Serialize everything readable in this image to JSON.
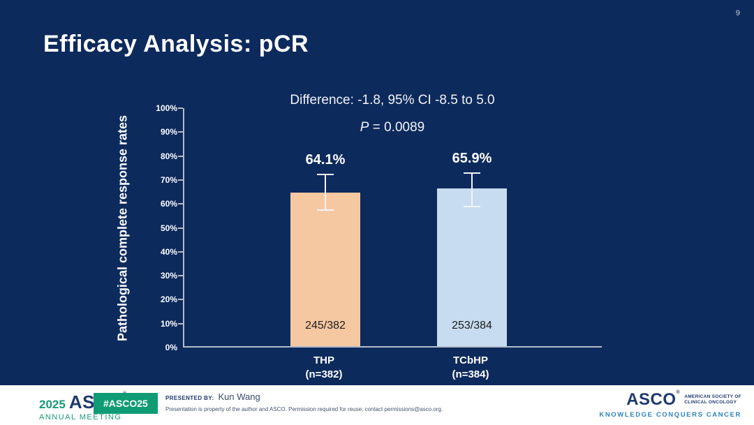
{
  "page_number": "9",
  "slide": {
    "title": "Efficacy Analysis: pCR"
  },
  "chart_data": {
    "type": "bar",
    "title": "",
    "ylabel": "Pathological complete response rates",
    "xlabel": "",
    "ylim": [
      0,
      100
    ],
    "ytick_step": 10,
    "ytick_labels": [
      "0%",
      "10%",
      "20%",
      "30%",
      "40%",
      "50%",
      "60%",
      "70%",
      "80%",
      "90%",
      "100%"
    ],
    "grid": false,
    "legend": "none",
    "categories": [
      "THP (n=382)",
      "TCbHP (n=384)"
    ],
    "bars": [
      {
        "label_line1": "THP",
        "label_line2": "(n=382)",
        "value": 64.1,
        "value_label": "64.1%",
        "count_label": "245/382",
        "color": "#f6c8a2",
        "ci_low": 57.5,
        "ci_high": 72.3
      },
      {
        "label_line1": "TCbHP",
        "label_line2": "(n=384)",
        "value": 65.9,
        "value_label": "65.9%",
        "count_label": "253/384",
        "color": "#c7dcf0",
        "ci_low": 58.8,
        "ci_high": 72.9
      }
    ],
    "annotations": {
      "difference": "Difference: -1.8, 95% CI -8.5 to 5.0",
      "p_italic": "P",
      "p_rest": " = 0.0089"
    }
  },
  "colors": {
    "background": "#0d2a5c",
    "bar_thp": "#f6c8a2",
    "bar_tcbhp": "#c7dcf0",
    "axis": "#b3bcc9",
    "badge_green": "#0f9c74",
    "logo_green": "#169a77",
    "logo_navy": "#1e3a6e",
    "motto_blue": "#2e83bd"
  },
  "footer": {
    "meeting_logo": {
      "year": "2025",
      "org": "ASCO",
      "reg": "®",
      "sub": "ANNUAL MEETING"
    },
    "hashtag_badge": "#ASCO25",
    "presented_by_label": "PRESENTED BY:",
    "presenter": "Kun Wang",
    "disclaimer": "Presentation is property of the author and ASCO. Permission required for reuse; contact permissions@asco.org.",
    "asco_logo": {
      "org": "ASCO",
      "reg": "®",
      "tagline_line1": "AMERICAN SOCIETY OF",
      "tagline_line2": "CLINICAL ONCOLOGY",
      "motto": "KNOWLEDGE CONQUERS CANCER"
    }
  }
}
